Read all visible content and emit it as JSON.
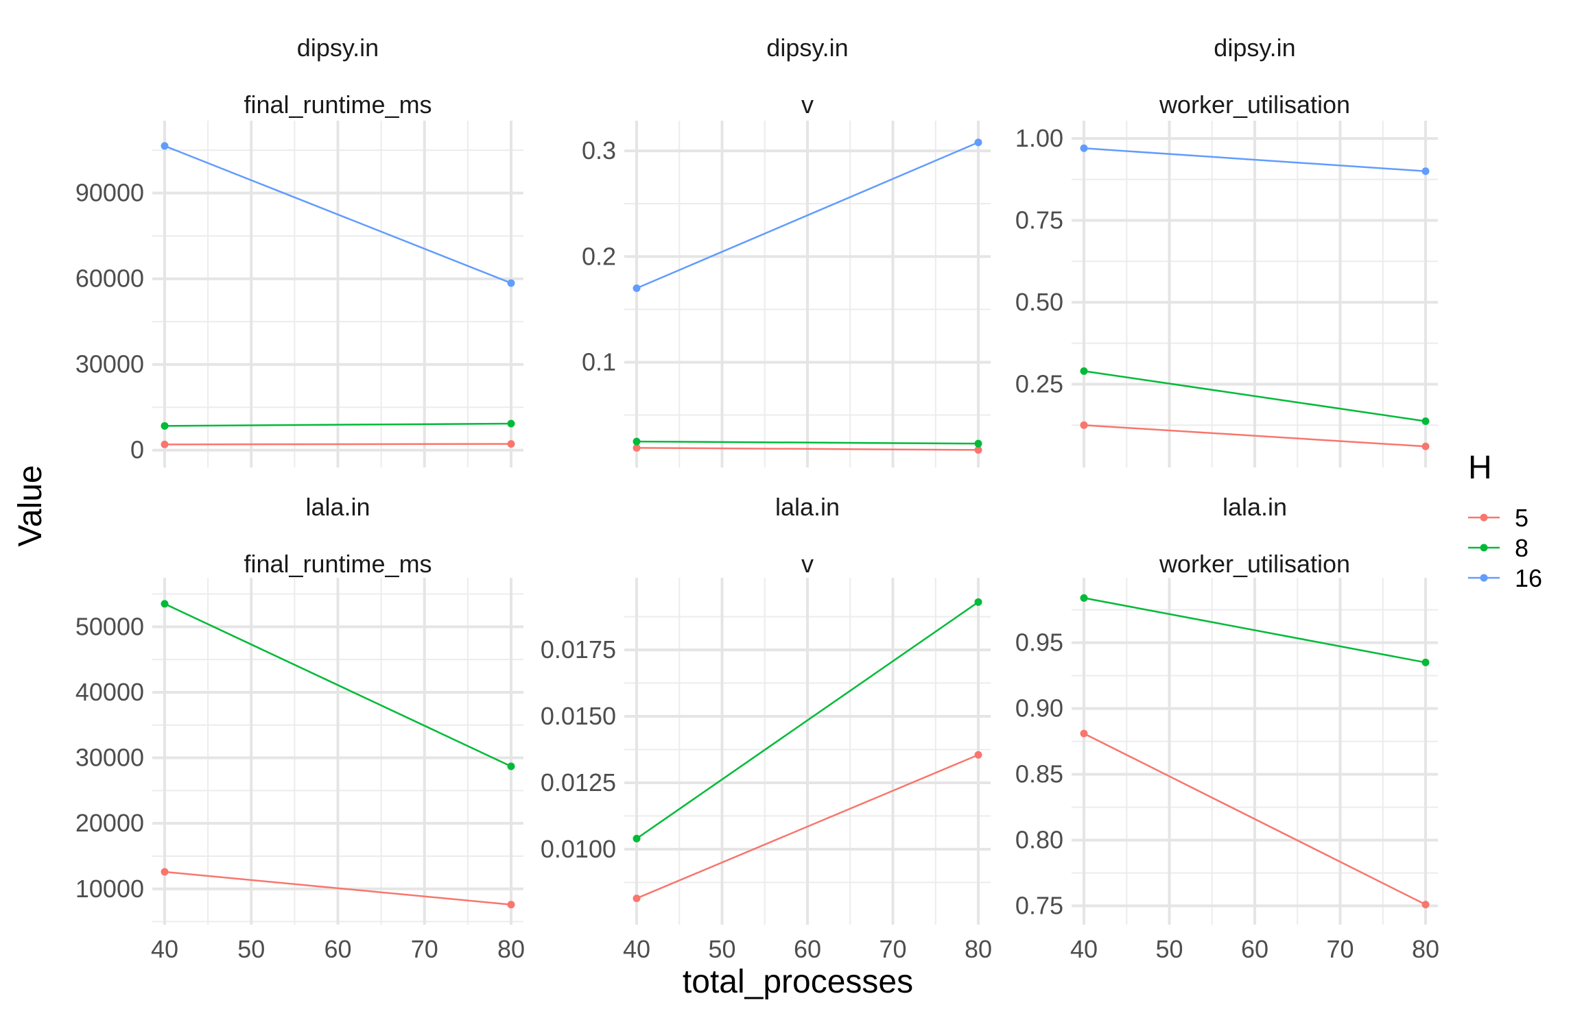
{
  "chart_data": {
    "type": "line",
    "xlabel": "total_processes",
    "ylabel": "Value",
    "legend": {
      "title": "H",
      "position": "right"
    },
    "series_colors": {
      "5": "#F8766D",
      "8": "#00BA38",
      "16": "#619CFF"
    },
    "x_ticks": [
      40,
      50,
      60,
      70,
      80
    ],
    "xlim": [
      40,
      80
    ],
    "grid": true,
    "panels": [
      {
        "dataset": "dipsy.in",
        "metric": "final_runtime_ms",
        "y_ticks": [
          "0",
          "30000",
          "60000",
          "90000"
        ],
        "y_tick_values": [
          0,
          30000,
          60000,
          90000
        ],
        "series": [
          {
            "name": "5",
            "x": [
              40,
              80
            ],
            "y": [
              2000,
              2200
            ]
          },
          {
            "name": "8",
            "x": [
              40,
              80
            ],
            "y": [
              8500,
              9300
            ]
          },
          {
            "name": "16",
            "x": [
              40,
              80
            ],
            "y": [
              106500,
              58500
            ]
          }
        ]
      },
      {
        "dataset": "dipsy.in",
        "metric": "v",
        "y_ticks": [
          "0.1",
          "0.2",
          "0.3"
        ],
        "y_tick_values": [
          0.1,
          0.2,
          0.3
        ],
        "series": [
          {
            "name": "5",
            "x": [
              40,
              80
            ],
            "y": [
              0.019,
              0.017
            ]
          },
          {
            "name": "8",
            "x": [
              40,
              80
            ],
            "y": [
              0.025,
              0.023
            ]
          },
          {
            "name": "16",
            "x": [
              40,
              80
            ],
            "y": [
              0.17,
              0.308
            ]
          }
        ]
      },
      {
        "dataset": "dipsy.in",
        "metric": "worker_utilisation",
        "y_ticks": [
          "0.25",
          "0.50",
          "0.75",
          "1.00"
        ],
        "y_tick_values": [
          0.25,
          0.5,
          0.75,
          1.0
        ],
        "series": [
          {
            "name": "5",
            "x": [
              40,
              80
            ],
            "y": [
              0.125,
              0.06
            ]
          },
          {
            "name": "8",
            "x": [
              40,
              80
            ],
            "y": [
              0.29,
              0.137
            ]
          },
          {
            "name": "16",
            "x": [
              40,
              80
            ],
            "y": [
              0.97,
              0.9
            ]
          }
        ]
      },
      {
        "dataset": "lala.in",
        "metric": "final_runtime_ms",
        "y_ticks": [
          "10000",
          "20000",
          "30000",
          "40000",
          "50000"
        ],
        "y_tick_values": [
          10000,
          20000,
          30000,
          40000,
          50000
        ],
        "series": [
          {
            "name": "5",
            "x": [
              40,
              80
            ],
            "y": [
              12600,
              7600
            ]
          },
          {
            "name": "8",
            "x": [
              40,
              80
            ],
            "y": [
              53500,
              28700
            ]
          }
        ]
      },
      {
        "dataset": "lala.in",
        "metric": "v",
        "y_ticks": [
          "0.0100",
          "0.0125",
          "0.0150",
          "0.0175"
        ],
        "y_tick_values": [
          0.01,
          0.0125,
          0.015,
          0.0175
        ],
        "series": [
          {
            "name": "5",
            "x": [
              40,
              80
            ],
            "y": [
              0.00815,
              0.01355
            ]
          },
          {
            "name": "8",
            "x": [
              40,
              80
            ],
            "y": [
              0.0104,
              0.0193
            ]
          }
        ]
      },
      {
        "dataset": "lala.in",
        "metric": "worker_utilisation",
        "y_ticks": [
          "0.75",
          "0.80",
          "0.85",
          "0.90",
          "0.95"
        ],
        "y_tick_values": [
          0.75,
          0.8,
          0.85,
          0.9,
          0.95
        ],
        "series": [
          {
            "name": "5",
            "x": [
              40,
              80
            ],
            "y": [
              0.881,
              0.751
            ]
          },
          {
            "name": "8",
            "x": [
              40,
              80
            ],
            "y": [
              0.984,
              0.935
            ]
          }
        ]
      }
    ]
  }
}
